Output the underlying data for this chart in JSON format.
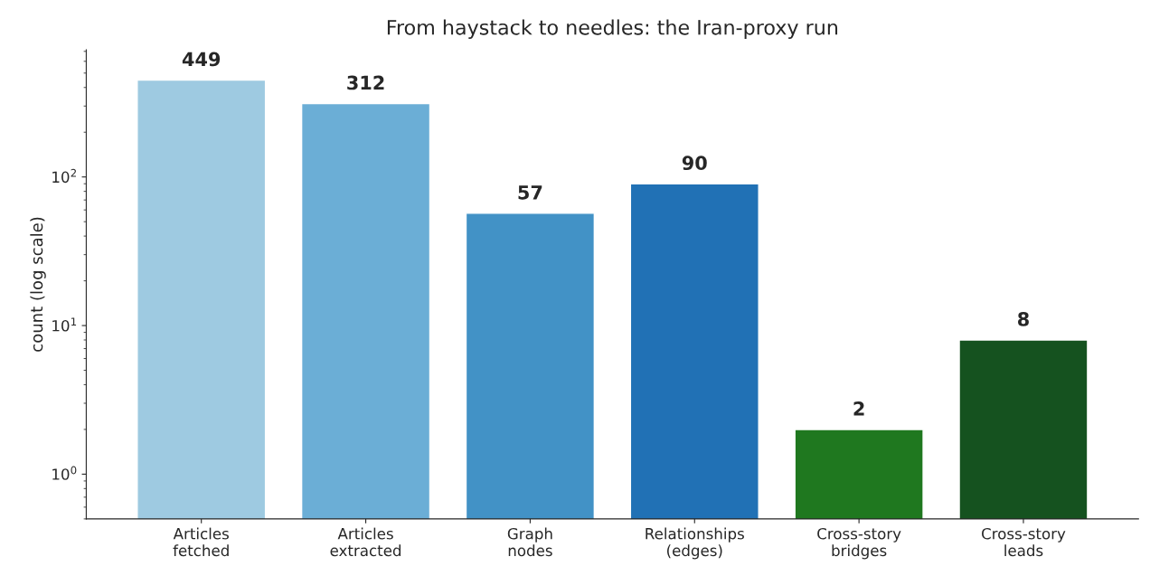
{
  "chart_data": {
    "type": "bar",
    "title": "From haystack to needles: the Iran-proxy run",
    "ylabel": "count (log scale)",
    "categories": [
      "Articles\nfetched",
      "Articles\nextracted",
      "Graph\nnodes",
      "Relationships\n(edges)",
      "Cross-story\nbridges",
      "Cross-story\nleads"
    ],
    "values": [
      449,
      312,
      57,
      90,
      2,
      8
    ],
    "colors": [
      "#9ecae1",
      "#6baed6",
      "#4292c6",
      "#2171b5",
      "#1f781f",
      "#15521f"
    ],
    "log": true,
    "ylim": [
      0.5,
      718
    ],
    "yticks": [
      {
        "value": 1,
        "label": "10$^{0}$"
      },
      {
        "value": 10,
        "label": "10$^{1}$"
      },
      {
        "value": 100,
        "label": "10$^{2}$"
      }
    ],
    "data_labels": true,
    "grid": false,
    "legend": false
  }
}
